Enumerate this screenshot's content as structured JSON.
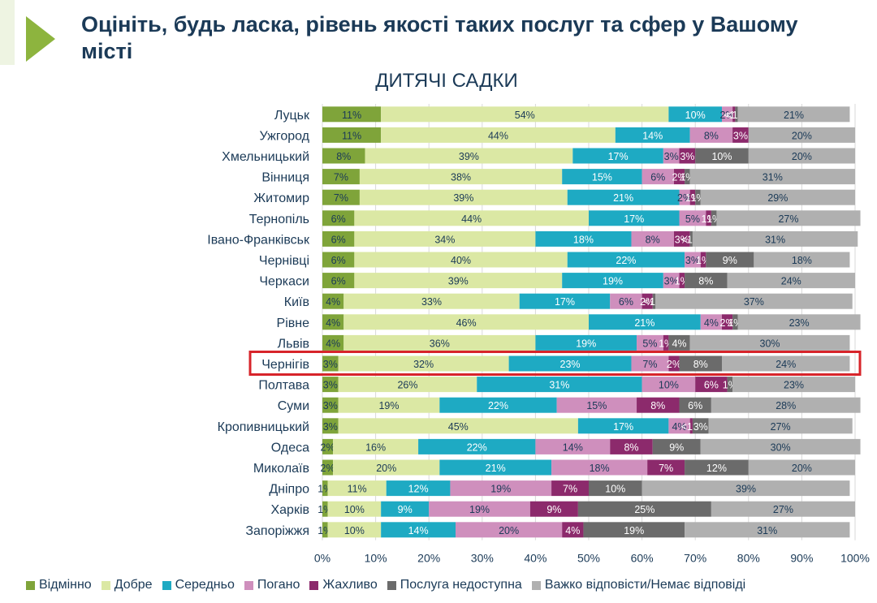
{
  "title": "Оцініть, будь ласка, рівень якості таких послуг та сфер у Вашому місті",
  "chart_data": {
    "type": "bar",
    "orientation": "horizontal",
    "stacked": true,
    "title": "ДИТЯЧІ САДКИ",
    "xlim": [
      0,
      100
    ],
    "x_ticks": [
      "0%",
      "10%",
      "20%",
      "30%",
      "40%",
      "50%",
      "60%",
      "70%",
      "80%",
      "90%",
      "100%"
    ],
    "grid": true,
    "legend_position": "bottom",
    "highlighted_category": "Чернігів",
    "highlight_color": "#d7242a",
    "categories": [
      "Луцьк",
      "Ужгород",
      "Хмельницький",
      "Вінниця",
      "Житомир",
      "Тернопіль",
      "Івано-Франківськ",
      "Чернівці",
      "Черкаси",
      "Київ",
      "Рівне",
      "Львів",
      "Чернігів",
      "Полтава",
      "Суми",
      "Кропивницький",
      "Одеса",
      "Миколаїв",
      "Дніпро",
      "Харків",
      "Запоріжжя"
    ],
    "series": [
      {
        "name": "Відмінно",
        "color": "#7fa43a",
        "values": [
          11,
          11,
          8,
          7,
          7,
          6,
          6,
          6,
          6,
          4,
          4,
          4,
          3,
          3,
          3,
          3,
          2,
          2,
          1,
          1,
          1
        ],
        "labels": [
          "11%",
          "11%",
          "8%",
          "7%",
          "7%",
          "6%",
          "6%",
          "6%",
          "6%",
          "4%",
          "4%",
          "4%",
          "3%",
          "3%",
          "3%",
          "3%",
          "2%",
          "2%",
          "1%",
          "1%",
          "1%"
        ]
      },
      {
        "name": "Добре",
        "color": "#dbe8a4",
        "values": [
          54,
          44,
          39,
          38,
          39,
          44,
          34,
          40,
          39,
          33,
          46,
          36,
          32,
          26,
          19,
          45,
          16,
          20,
          11,
          10,
          10
        ],
        "labels": [
          "54%",
          "44%",
          "39%",
          "38%",
          "39%",
          "44%",
          "34%",
          "40%",
          "39%",
          "33%",
          "46%",
          "36%",
          "32%",
          "26%",
          "19%",
          "45%",
          "16%",
          "20%",
          "11%",
          "10%",
          "10%"
        ]
      },
      {
        "name": "Середньо",
        "color": "#1eaac3",
        "values": [
          10,
          14,
          17,
          15,
          21,
          17,
          18,
          22,
          19,
          17,
          21,
          19,
          23,
          31,
          22,
          17,
          22,
          21,
          12,
          9,
          14
        ],
        "labels": [
          "10%",
          "14%",
          "17%",
          "15%",
          "21%",
          "17%",
          "18%",
          "22%",
          "19%",
          "17%",
          "21%",
          "19%",
          "23%",
          "31%",
          "22%",
          "17%",
          "22%",
          "21%",
          "12%",
          "9%",
          "14%"
        ]
      },
      {
        "name": "Погано",
        "color": "#cf8fbd",
        "values": [
          2,
          8,
          3,
          6,
          2,
          5,
          8,
          3,
          3,
          6,
          4,
          5,
          7,
          10,
          15,
          4,
          14,
          18,
          19,
          19,
          20
        ],
        "labels": [
          "2%",
          "8%",
          "3%",
          "6%",
          "2%",
          "5%",
          "8%",
          "3%",
          "3%",
          "6%",
          "4%",
          "5%",
          "7%",
          "10%",
          "15%",
          "4%",
          "14%",
          "18%",
          "19%",
          "19%",
          "20%"
        ]
      },
      {
        "name": "Жахливо",
        "color": "#8c2a6c",
        "values": [
          0.5,
          3,
          3,
          2,
          1,
          1,
          3,
          1,
          1,
          2,
          2,
          1,
          2,
          6,
          8,
          0.5,
          8,
          7,
          7,
          9,
          4
        ],
        "labels": [
          "<1%",
          "3%",
          "3%",
          "2%",
          "1%",
          "1%",
          "3%",
          "1%",
          "1%",
          "2%",
          "2%",
          "1%",
          "2%",
          "6%",
          "8%",
          "<1%",
          "8%",
          "7%",
          "7%",
          "9%",
          "4%"
        ]
      },
      {
        "name": "Послуга недоступна",
        "color": "#6b6b6b",
        "values": [
          0.5,
          0,
          10,
          1,
          1,
          1,
          0.5,
          9,
          8,
          0.5,
          1,
          4,
          8,
          1,
          6,
          3,
          9,
          12,
          10,
          25,
          19
        ],
        "labels": [
          "<1%",
          "",
          "10%",
          "1%",
          "1%",
          "1%",
          "<1%",
          "9%",
          "8%",
          "<1%",
          "1%",
          "4%",
          "8%",
          "1%",
          "6%",
          "3%",
          "9%",
          "12%",
          "10%",
          "25%",
          "19%"
        ]
      },
      {
        "name": "Важко відповісти/Немає відповіді",
        "color": "#b0b0b0",
        "values": [
          21,
          20,
          20,
          31,
          29,
          27,
          31,
          18,
          24,
          37,
          23,
          30,
          24,
          23,
          28,
          27,
          30,
          20,
          39,
          27,
          31
        ],
        "labels": [
          "21%",
          "20%",
          "20%",
          "31%",
          "29%",
          "27%",
          "31%",
          "18%",
          "24%",
          "37%",
          "23%",
          "30%",
          "24%",
          "23%",
          "28%",
          "27%",
          "30%",
          "20%",
          "39%",
          "27%",
          "31%"
        ]
      }
    ]
  }
}
